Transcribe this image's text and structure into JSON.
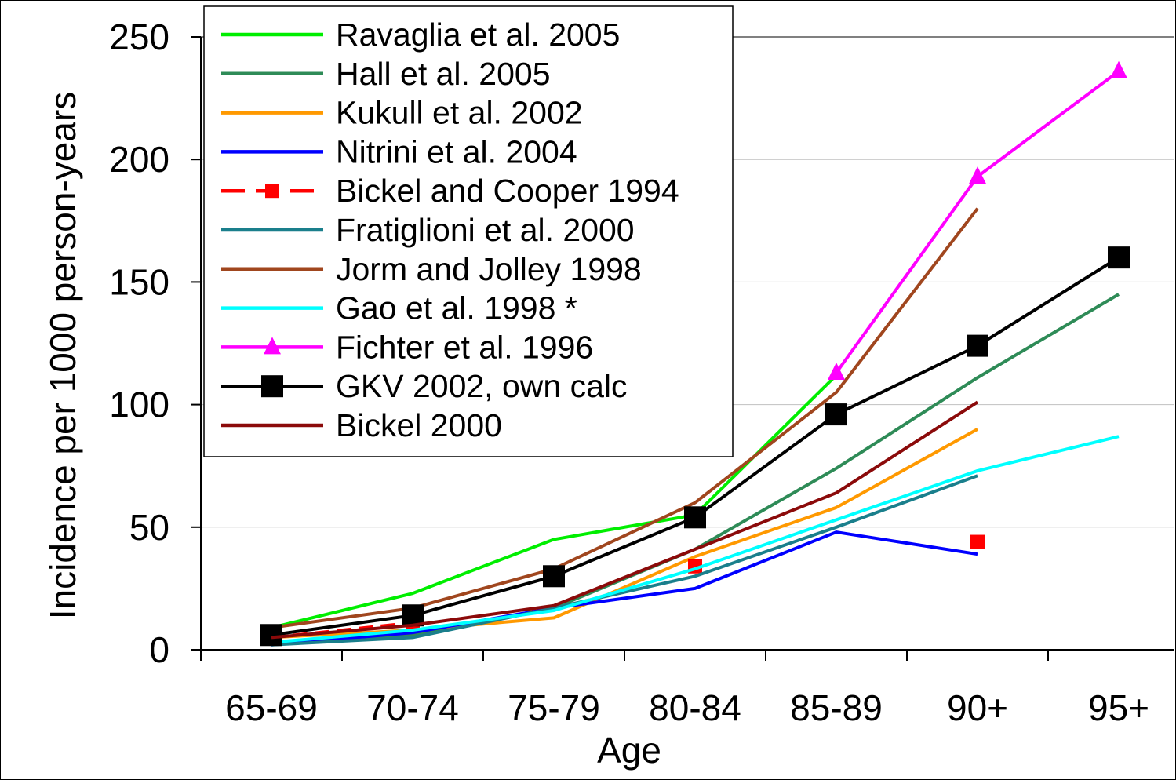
{
  "chart_data": {
    "type": "line",
    "title": "",
    "xlabel": "Age",
    "ylabel": "Incidence per 1000 person-years",
    "categories": [
      "65-69",
      "70-74",
      "75-79",
      "80-84",
      "85-89",
      "90+",
      "95+"
    ],
    "ylim": [
      0,
      250
    ],
    "yticks": [
      0,
      50,
      100,
      150,
      200,
      250
    ],
    "grid": "horizontal",
    "legend_position": "top-left",
    "series": [
      {
        "name": "Ravaglia et al. 2005",
        "color": "#00ee00",
        "marker": "none",
        "dash": false,
        "values": [
          9,
          23,
          45,
          55,
          112,
          null,
          null
        ]
      },
      {
        "name": "Hall et al. 2005",
        "color": "#2e8b57",
        "marker": "none",
        "dash": false,
        "values": [
          3,
          6,
          17,
          41,
          74,
          111,
          145
        ]
      },
      {
        "name": "Kukull et al. 2002",
        "color": "#ff9900",
        "marker": "none",
        "dash": false,
        "values": [
          5,
          8,
          13,
          38,
          58,
          90,
          null
        ]
      },
      {
        "name": "Nitrini et al. 2004",
        "color": "#0000ff",
        "marker": "none",
        "dash": false,
        "values": [
          2,
          7,
          17,
          25,
          48,
          39,
          null
        ]
      },
      {
        "name": "Bickel and Cooper 1994",
        "color": "#ff0000",
        "marker": "square",
        "dash": true,
        "values": [
          5,
          11,
          null,
          34,
          null,
          44,
          null
        ]
      },
      {
        "name": "Fratiglioni et al. 2000",
        "color": "#1a7f8c",
        "marker": "none",
        "dash": false,
        "values": [
          2,
          5,
          17,
          30,
          50,
          71,
          null
        ]
      },
      {
        "name": "Jorm and Jolley 1998",
        "color": "#a0461e",
        "marker": "none",
        "dash": false,
        "values": [
          9,
          17,
          33,
          60,
          105,
          180,
          null
        ]
      },
      {
        "name": "Gao et al. 1998 *",
        "color": "#00ffff",
        "marker": "none",
        "dash": false,
        "values": [
          3,
          8,
          16,
          33,
          53,
          73,
          87
        ]
      },
      {
        "name": "Fichter et al. 1996",
        "color": "#ff00ff",
        "marker": "triangle",
        "dash": false,
        "values": [
          null,
          null,
          null,
          null,
          113,
          193,
          236
        ]
      },
      {
        "name": "GKV 2002, own calc",
        "color": "#000000",
        "marker": "square-large",
        "dash": false,
        "values": [
          6,
          14,
          30,
          54,
          96,
          124,
          160
        ]
      },
      {
        "name": "Bickel 2000",
        "color": "#8b0a0a",
        "marker": "none",
        "dash": false,
        "values": [
          5,
          10,
          18,
          41,
          64,
          101,
          null
        ]
      }
    ]
  }
}
